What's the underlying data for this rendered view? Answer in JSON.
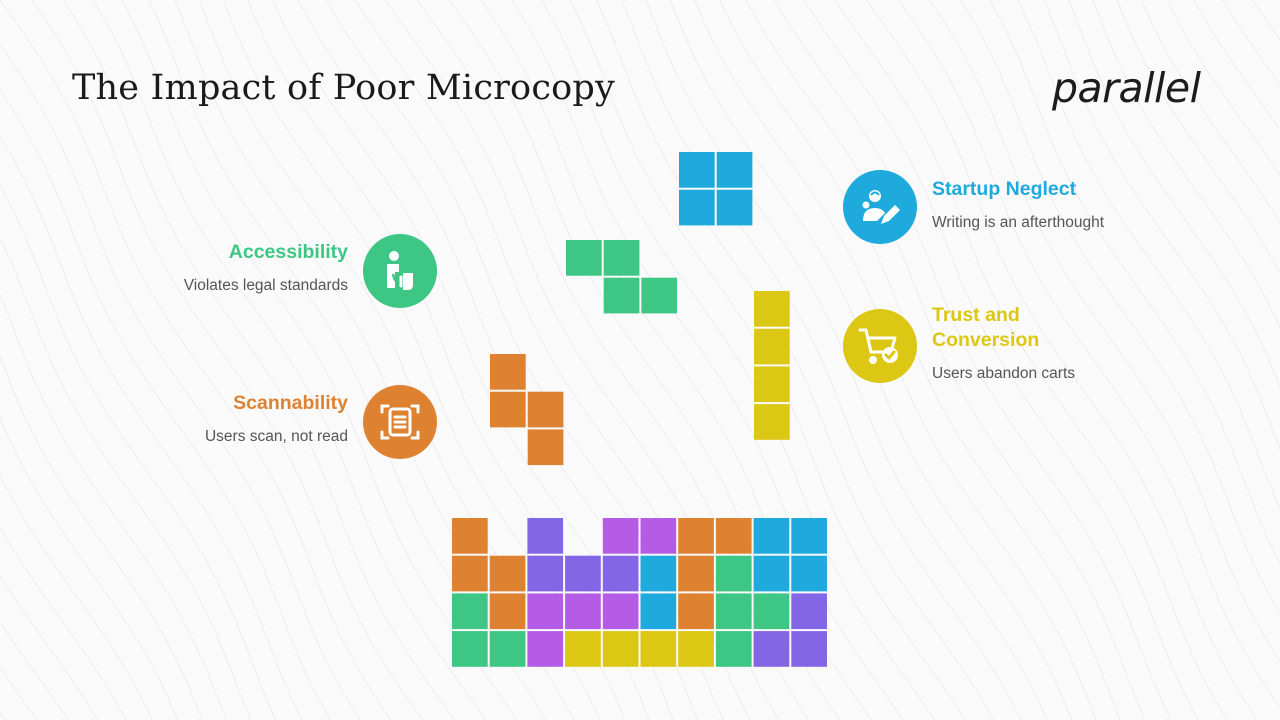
{
  "title": "The Impact of Poor Microcopy",
  "logo": "parallel",
  "colors": {
    "blue": "#1eaadc",
    "green": "#3dc684",
    "yellow": "#dcc814",
    "orange": "#de8232",
    "purple": "#8266e6",
    "violet": "#b45ce6"
  },
  "items": [
    {
      "id": "accessibility",
      "title": "Accessibility",
      "desc": "Violates legal standards",
      "color": "#3dc684",
      "icon": "assistance-icon"
    },
    {
      "id": "scannability",
      "title": "Scannability",
      "desc": "Users scan, not read",
      "color": "#de8232",
      "icon": "document-scan-icon"
    },
    {
      "id": "startup-neglect",
      "title": "Startup Neglect",
      "desc": "Writing is an afterthought",
      "color": "#1eaadc",
      "icon": "user-edit-icon"
    },
    {
      "id": "trust-conversion",
      "title": "Trust and\nConversion",
      "desc": "Users abandon carts",
      "color": "#dcc814",
      "icon": "cart-check-icon"
    }
  ],
  "pieces": [
    {
      "name": "square-piece",
      "color": "#1eaadc",
      "cells": [
        [
          0,
          0
        ],
        [
          1,
          0
        ],
        [
          0,
          1
        ],
        [
          1,
          1
        ]
      ]
    },
    {
      "name": "z-piece",
      "color": "#3dc684",
      "cells": [
        [
          0,
          0
        ],
        [
          1,
          0
        ],
        [
          1,
          1
        ],
        [
          2,
          1
        ]
      ]
    },
    {
      "name": "i-piece",
      "color": "#dcc814",
      "cells": [
        [
          0,
          0
        ],
        [
          0,
          1
        ],
        [
          0,
          2
        ],
        [
          0,
          3
        ]
      ]
    },
    {
      "name": "s-piece",
      "color": "#de8232",
      "cells": [
        [
          0,
          0
        ],
        [
          0,
          1
        ],
        [
          1,
          1
        ],
        [
          1,
          2
        ]
      ]
    }
  ],
  "stack": [
    "O.P.VVOOBB",
    "OOPPPBOGBB",
    "GOVVVBOGGP",
    "GGVYYYYGPP"
  ]
}
